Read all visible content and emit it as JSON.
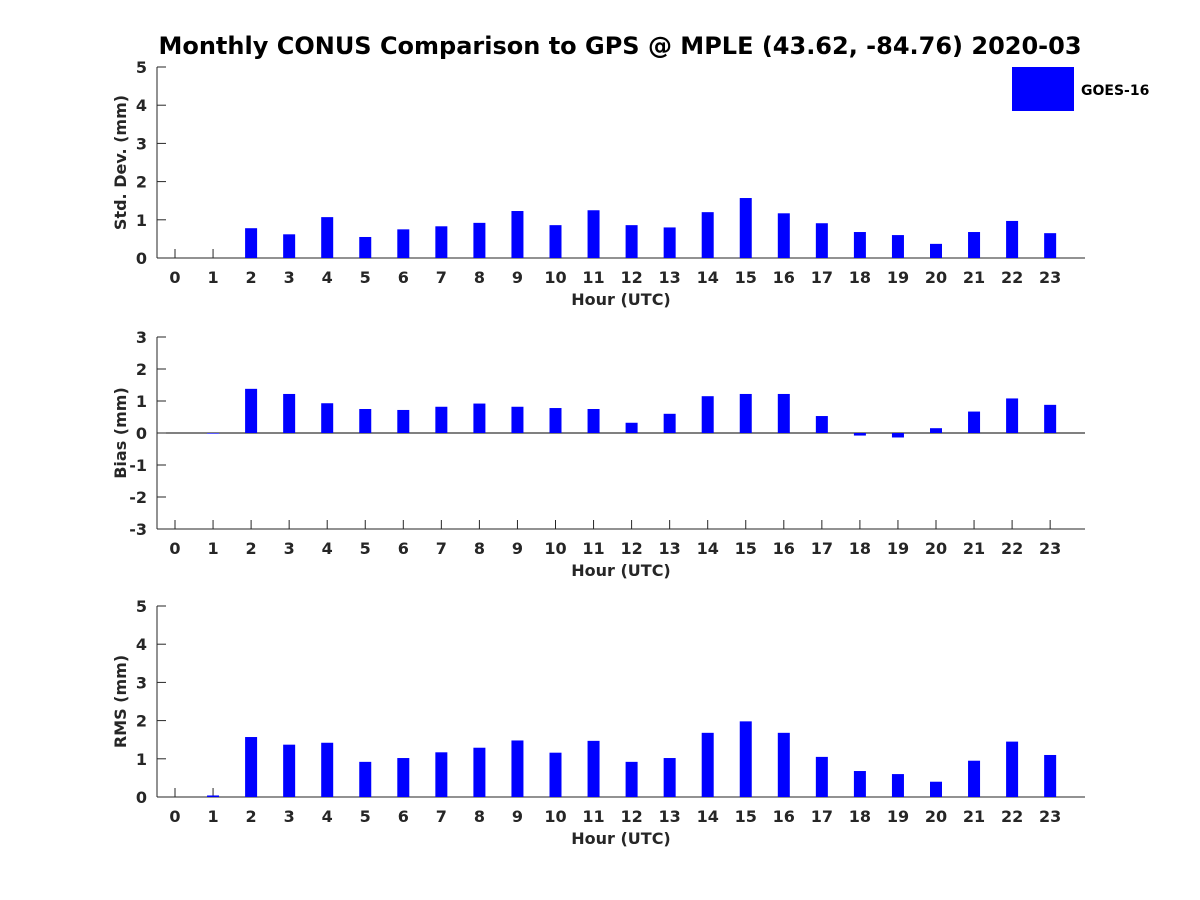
{
  "chart_data": {
    "title": "Monthly CONUS Comparison to GPS @ MPLE (43.62, -84.76) 2020-03",
    "legend": [
      {
        "name": "GOES-16",
        "color": "#0000ff"
      }
    ],
    "legend_position": "top-right",
    "panels": [
      {
        "type": "bar",
        "ylabel": "Std. Dev. (mm)",
        "xlabel": "Hour (UTC)",
        "ylim": [
          0,
          5
        ],
        "yticks": [
          0,
          1,
          2,
          3,
          4,
          5
        ],
        "categories": [
          "0",
          "1",
          "2",
          "3",
          "4",
          "5",
          "6",
          "7",
          "8",
          "9",
          "10",
          "11",
          "12",
          "13",
          "14",
          "15",
          "16",
          "17",
          "18",
          "19",
          "20",
          "21",
          "22",
          "23"
        ],
        "series": [
          {
            "name": "GOES-16",
            "color": "#0000ff",
            "values": [
              0,
              0,
              0.78,
              0.62,
              1.07,
              0.55,
              0.75,
              0.83,
              0.92,
              1.23,
              0.86,
              1.25,
              0.86,
              0.8,
              1.2,
              1.57,
              1.17,
              0.91,
              0.68,
              0.6,
              0.37,
              0.68,
              0.97,
              0.65
            ]
          }
        ]
      },
      {
        "type": "bar",
        "ylabel": "Bias (mm)",
        "xlabel": "Hour (UTC)",
        "ylim": [
          -3,
          3
        ],
        "yticks": [
          -3,
          -2,
          -1,
          0,
          1,
          2,
          3
        ],
        "categories": [
          "0",
          "1",
          "2",
          "3",
          "4",
          "5",
          "6",
          "7",
          "8",
          "9",
          "10",
          "11",
          "12",
          "13",
          "14",
          "15",
          "16",
          "17",
          "18",
          "19",
          "20",
          "21",
          "22",
          "23"
        ],
        "series": [
          {
            "name": "GOES-16",
            "color": "#0000ff",
            "values": [
              0,
              -0.02,
              1.38,
              1.22,
              0.93,
              0.75,
              0.72,
              0.82,
              0.92,
              0.82,
              0.78,
              0.75,
              0.32,
              0.6,
              1.15,
              1.22,
              1.22,
              0.53,
              -0.08,
              -0.14,
              0.15,
              0.67,
              1.08,
              0.88
            ]
          }
        ]
      },
      {
        "type": "bar",
        "ylabel": "RMS (mm)",
        "xlabel": "Hour (UTC)",
        "ylim": [
          0,
          5
        ],
        "yticks": [
          0,
          1,
          2,
          3,
          4,
          5
        ],
        "categories": [
          "0",
          "1",
          "2",
          "3",
          "4",
          "5",
          "6",
          "7",
          "8",
          "9",
          "10",
          "11",
          "12",
          "13",
          "14",
          "15",
          "16",
          "17",
          "18",
          "19",
          "20",
          "21",
          "22",
          "23"
        ],
        "series": [
          {
            "name": "GOES-16",
            "color": "#0000ff",
            "values": [
              0,
              0.04,
              1.57,
              1.37,
              1.42,
              0.92,
              1.02,
              1.17,
              1.29,
              1.48,
              1.16,
              1.47,
              0.92,
              1.02,
              1.68,
              1.98,
              1.68,
              1.05,
              0.68,
              0.6,
              0.4,
              0.95,
              1.45,
              1.1
            ]
          }
        ]
      }
    ]
  }
}
